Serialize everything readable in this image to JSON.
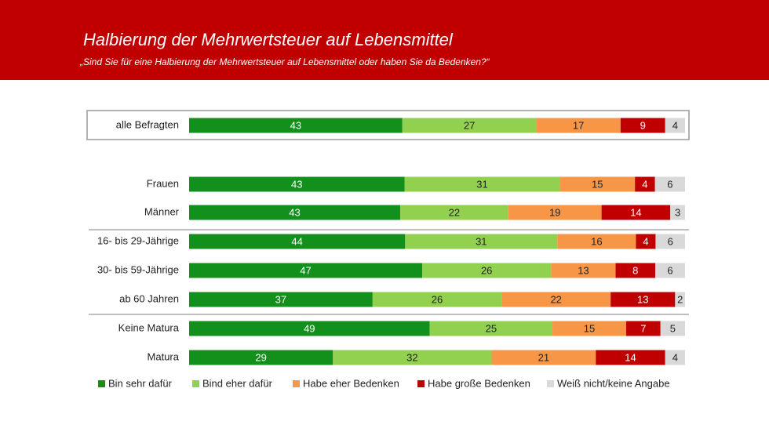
{
  "chart_data": {
    "type": "bar",
    "orientation": "horizontal",
    "stacked": true,
    "title": "Halbierung der Mehrwertsteuer auf Lebensmittel",
    "subtitle": "„Sind Sie für eine Halbierung der Mehrwertsteuer auf Lebensmittel oder haben Sie da Bedenken?“",
    "categories": [
      "alle Befragten",
      "Frauen",
      "Männer",
      "16- bis 29-Jährige",
      "30- bis 59-Jährige",
      "ab 60 Jahren",
      "Keine Matura",
      "Matura"
    ],
    "series": [
      {
        "name": "Bin sehr dafür",
        "color": "#138f1c",
        "values": [
          43,
          43,
          43,
          44,
          47,
          37,
          49,
          29
        ]
      },
      {
        "name": "Bind eher dafür",
        "color": "#92d050",
        "values": [
          27,
          31,
          22,
          31,
          26,
          26,
          25,
          32
        ]
      },
      {
        "name": "Habe eher Bedenken",
        "color": "#f79646",
        "values": [
          17,
          15,
          19,
          16,
          13,
          22,
          15,
          21
        ]
      },
      {
        "name": "Habe große Bedenken",
        "color": "#c00000",
        "values": [
          9,
          4,
          14,
          4,
          8,
          13,
          7,
          14
        ]
      },
      {
        "name": "Weiß nicht/keine Angabe",
        "color": "#d9d9d9",
        "values": [
          4,
          6,
          3,
          6,
          6,
          2,
          5,
          4
        ]
      }
    ]
  }
}
